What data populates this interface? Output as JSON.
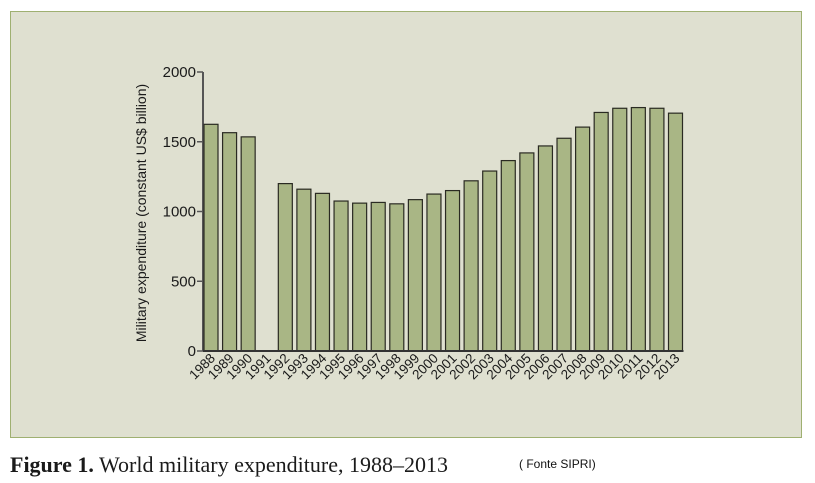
{
  "chart_data": {
    "type": "bar",
    "title": "Figure 1. World military expenditure, 1988–2013",
    "source": "( Fonte SIPRI)",
    "xlabel": "",
    "ylabel": "Military expenditure (constant US$ billion)",
    "ylim": [
      0,
      2000
    ],
    "yticks": [
      0,
      500,
      1000,
      1500,
      2000
    ],
    "grid": false,
    "categories": [
      "1988",
      "1989",
      "1990",
      "1991",
      "1992",
      "1993",
      "1994",
      "1995",
      "1996",
      "1997",
      "1998",
      "1999",
      "2000",
      "2001",
      "2002",
      "2003",
      "2004",
      "2005",
      "2006",
      "2007",
      "2008",
      "2009",
      "2010",
      "2011",
      "2012",
      "2013"
    ],
    "values": [
      1625,
      1565,
      1535,
      null,
      1200,
      1160,
      1130,
      1075,
      1060,
      1065,
      1055,
      1085,
      1125,
      1150,
      1220,
      1290,
      1365,
      1420,
      1470,
      1525,
      1605,
      1710,
      1740,
      1745,
      1740,
      1705
    ],
    "colors": {
      "bar": "#a9b685",
      "bar_edge": "#2a2a22",
      "panel": "#dfe0d0",
      "panel_border": "#9fb071"
    }
  },
  "caption": {
    "figure_label": "Figure 1.",
    "text": " World military expenditure, 1988–2013",
    "source": "( Fonte SIPRI)"
  }
}
